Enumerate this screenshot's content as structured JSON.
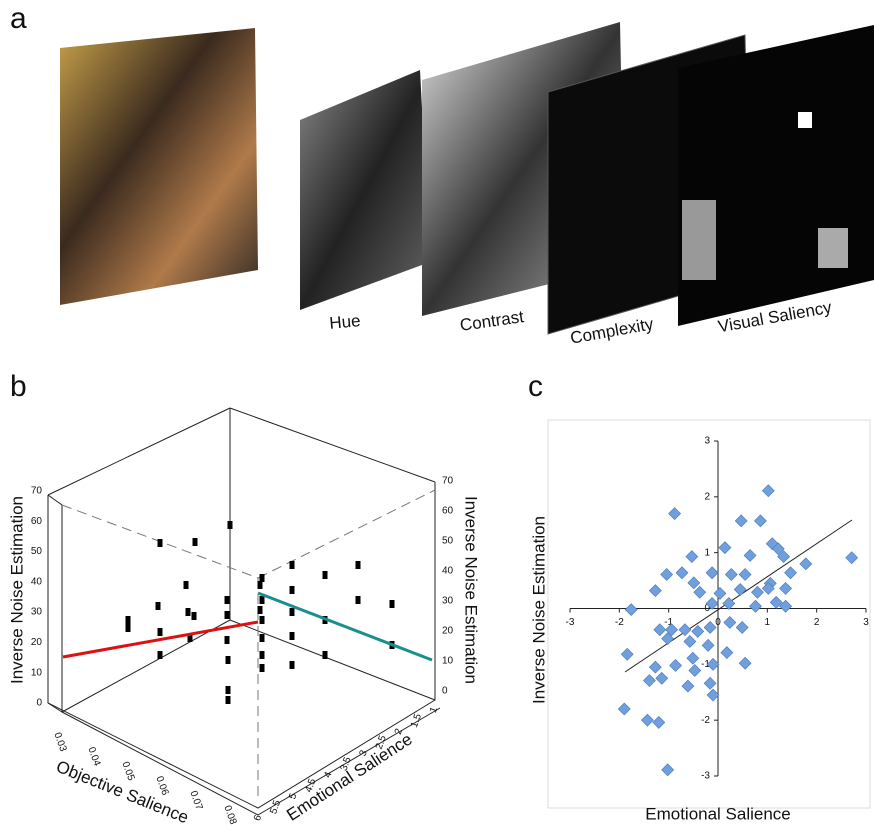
{
  "panel_a": {
    "label": "a",
    "layers": [
      "Hue",
      "Contrast",
      "Complexity",
      "Visual Saliency"
    ]
  },
  "panel_b": {
    "label": "b",
    "y_label_left": "Inverse Noise Estimation",
    "y_label_right": "Inverse Noise Estimation",
    "y_ticks_left": [
      0,
      10,
      20,
      30,
      40,
      50,
      60,
      70
    ],
    "y_ticks_right": [
      70,
      60,
      50,
      40,
      30,
      20,
      10,
      0
    ],
    "x_label": "Objective Salience",
    "x_ticks": [
      0.03,
      0.04,
      0.05,
      0.06,
      0.07,
      0.08
    ],
    "z_label": "Emotional Salience",
    "z_ticks": [
      6,
      5.5,
      5,
      4.5,
      4,
      3.5,
      3,
      2.5,
      2,
      1.5,
      1
    ]
  },
  "panel_c": {
    "label": "c"
  },
  "chart_data": {
    "type": "scatter",
    "x_label": "Emotional Salience",
    "y_label": "Inverse Noise Estimation",
    "color": "#6f9fdc",
    "x": [
      1.02,
      -0.88,
      0.47,
      0.86,
      -0.53,
      0.14,
      0.65,
      1.1,
      1.22,
      1.33,
      -1.04,
      -0.73,
      -0.49,
      -0.12,
      0.27,
      0.55,
      1.06,
      1.47,
      1.78,
      2.71,
      -1.27,
      -0.37,
      0.04,
      0.45,
      0.8,
      1.02,
      1.37,
      -0.12,
      0.22,
      0.76,
      1.18,
      1.37,
      -1.76,
      -1.18,
      -0.94,
      -0.67,
      -0.41,
      -0.16,
      0.24,
      0.49,
      -1.02,
      -0.57,
      -0.2,
      0.18,
      -1.84,
      -0.51,
      -0.1,
      0.55,
      -1.27,
      -0.86,
      -0.47,
      -1.39,
      -1.14,
      -0.16,
      -0.61,
      -1.9,
      -1.43,
      -1.2,
      -1.02,
      -0.1
    ],
    "values": [
      2.11,
      1.7,
      1.57,
      1.57,
      0.93,
      1.09,
      0.95,
      1.16,
      1.07,
      0.93,
      0.61,
      0.64,
      0.46,
      0.64,
      0.61,
      0.61,
      0.45,
      0.64,
      0.8,
      0.91,
      0.32,
      0.29,
      0.27,
      0.34,
      0.29,
      0.36,
      0.36,
      0.09,
      0.09,
      0.04,
      0.11,
      0.04,
      -0.02,
      -0.38,
      -0.38,
      -0.38,
      -0.41,
      -0.34,
      -0.25,
      -0.34,
      -0.54,
      -0.59,
      -0.66,
      -0.79,
      -0.82,
      -0.89,
      -1.0,
      -0.98,
      -1.05,
      -1.02,
      -1.11,
      -1.29,
      -1.25,
      -1.34,
      -1.39,
      -1.8,
      -2.0,
      -2.04,
      -2.89,
      -1.55
    ],
    "xlim": [
      -3,
      3
    ],
    "ylim": [
      -3,
      3
    ],
    "xticks": [
      -3,
      -2,
      -1,
      0,
      1,
      2,
      3
    ],
    "yticks": [
      -3,
      -2,
      -1,
      0,
      1,
      2,
      3
    ]
  }
}
